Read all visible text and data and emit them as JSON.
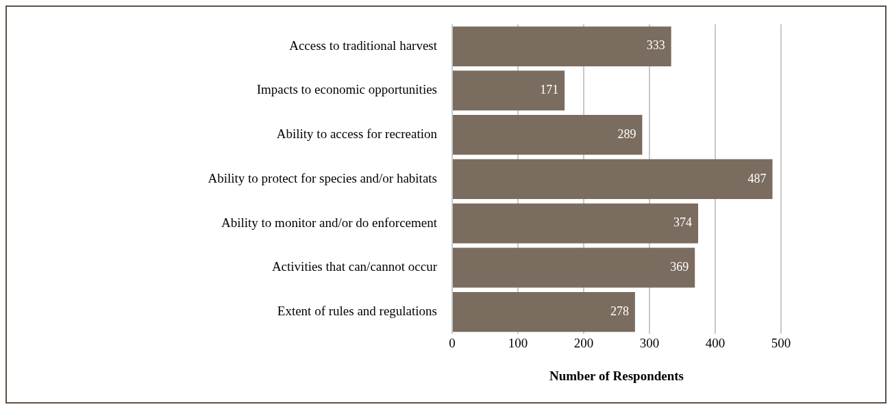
{
  "chart_data": {
    "type": "bar",
    "orientation": "horizontal",
    "xlabel": "Number of Respondents",
    "categories": [
      "Access to traditional harvest",
      "Impacts to economic opportunities",
      "Ability to access for recreation",
      "Ability to protect for species and/or habitats",
      "Ability to monitor and/or do enforcement",
      "Activities that can/cannot occur",
      "Extent of rules and regulations"
    ],
    "values": [
      333,
      171,
      289,
      487,
      374,
      369,
      278
    ],
    "color": "#7a6c5f",
    "xlim": [
      0,
      500
    ],
    "xticks": [
      0,
      100,
      200,
      300,
      400,
      500
    ],
    "grid": "x",
    "legend": false,
    "data_labels": true
  }
}
